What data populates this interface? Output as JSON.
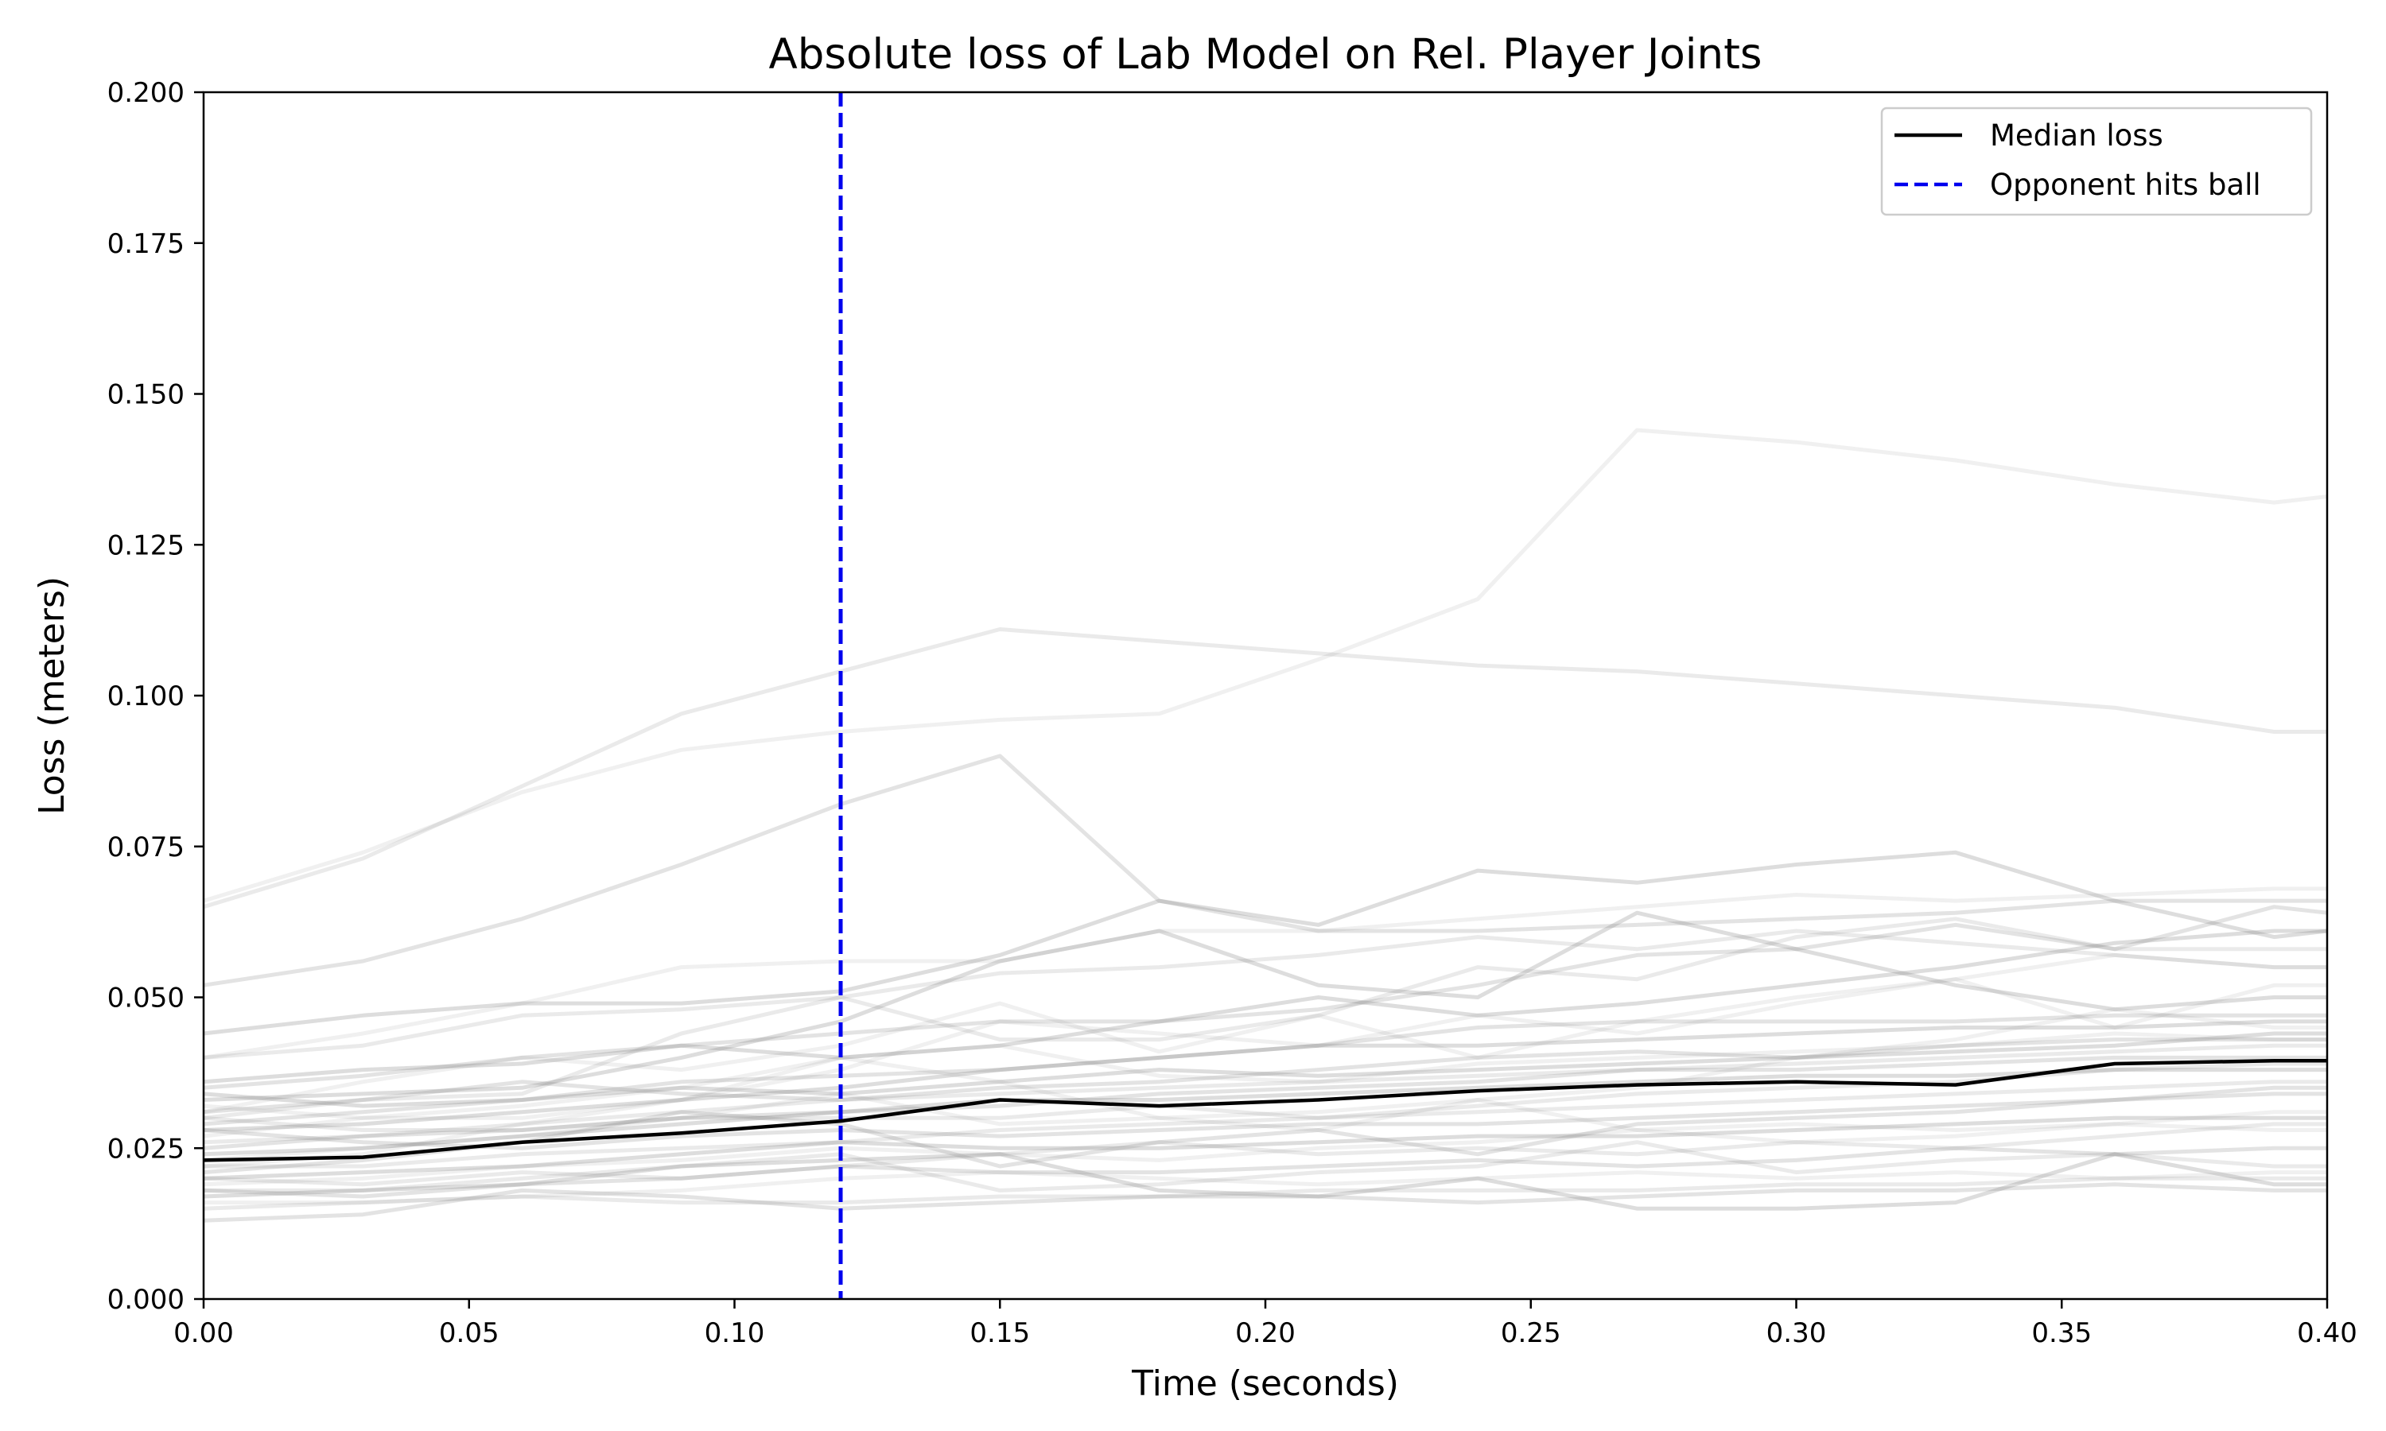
{
  "chart_data": {
    "type": "line",
    "title": "Absolute loss of Lab Model on Rel. Player Joints",
    "xlabel": "Time (seconds)",
    "ylabel": "Loss (meters)",
    "xlim": [
      0,
      0.4
    ],
    "ylim": [
      0,
      0.2
    ],
    "xticks": [
      0,
      0.05,
      0.1,
      0.15,
      0.2,
      0.25,
      0.3,
      0.35,
      0.4
    ],
    "xtick_labels": [
      "0.00",
      "0.05",
      "0.10",
      "0.15",
      "0.20",
      "0.25",
      "0.30",
      "0.35",
      "0.40"
    ],
    "yticks": [
      0,
      0.025,
      0.05,
      0.075,
      0.1,
      0.125,
      0.15,
      0.175,
      0.2
    ],
    "ytick_labels": [
      "0.000",
      "0.025",
      "0.050",
      "0.075",
      "0.100",
      "0.125",
      "0.150",
      "0.175",
      "0.200"
    ],
    "grid": false,
    "legend_position": "top-right",
    "x": [
      0,
      0.03,
      0.06,
      0.09,
      0.12,
      0.15,
      0.18,
      0.21,
      0.24,
      0.27,
      0.3,
      0.33,
      0.36,
      0.39,
      0.4
    ],
    "median": {
      "name": "Median loss",
      "color": "#000000",
      "values": [
        0.023,
        0.0235,
        0.026,
        0.0275,
        0.0295,
        0.033,
        0.032,
        0.033,
        0.0345,
        0.0355,
        0.036,
        0.0355,
        0.039,
        0.0395,
        0.0395
      ]
    },
    "event_line": {
      "name": "Opponent hits ball",
      "x": 0.12,
      "color": "#0000ee",
      "style": "dashed"
    },
    "individual_series": {
      "color": "#808080",
      "values": [
        [
          0.066,
          0.074,
          0.084,
          0.091,
          0.094,
          0.096,
          0.097,
          0.106,
          0.116,
          0.144,
          0.142,
          0.139,
          0.135,
          0.132,
          0.133
        ],
        [
          0.065,
          0.073,
          0.085,
          0.097,
          0.104,
          0.111,
          0.109,
          0.107,
          0.105,
          0.104,
          0.102,
          0.1,
          0.098,
          0.094,
          0.094
        ],
        [
          0.052,
          0.056,
          0.063,
          0.072,
          0.082,
          0.09,
          0.066,
          0.061,
          0.061,
          0.062,
          0.063,
          0.064,
          0.066,
          0.066,
          0.066
        ],
        [
          0.044,
          0.047,
          0.049,
          0.049,
          0.051,
          0.057,
          0.066,
          0.062,
          0.071,
          0.069,
          0.072,
          0.074,
          0.066,
          0.06,
          0.061
        ],
        [
          0.04,
          0.044,
          0.049,
          0.055,
          0.056,
          0.056,
          0.061,
          0.061,
          0.063,
          0.065,
          0.067,
          0.066,
          0.067,
          0.068,
          0.068
        ],
        [
          0.04,
          0.042,
          0.047,
          0.048,
          0.05,
          0.054,
          0.055,
          0.057,
          0.06,
          0.058,
          0.061,
          0.059,
          0.057,
          0.055,
          0.055
        ],
        [
          0.035,
          0.037,
          0.04,
          0.042,
          0.044,
          0.046,
          0.046,
          0.048,
          0.052,
          0.057,
          0.058,
          0.062,
          0.058,
          0.065,
          0.064
        ],
        [
          0.033,
          0.034,
          0.035,
          0.04,
          0.046,
          0.056,
          0.061,
          0.052,
          0.05,
          0.064,
          0.058,
          0.052,
          0.048,
          0.05,
          0.05
        ],
        [
          0.031,
          0.036,
          0.04,
          0.038,
          0.042,
          0.049,
          0.041,
          0.047,
          0.04,
          0.046,
          0.05,
          0.053,
          0.045,
          0.052,
          0.052
        ],
        [
          0.03,
          0.033,
          0.034,
          0.044,
          0.05,
          0.043,
          0.043,
          0.047,
          0.055,
          0.053,
          0.06,
          0.063,
          0.058,
          0.058,
          0.058
        ],
        [
          0.029,
          0.031,
          0.033,
          0.036,
          0.037,
          0.038,
          0.04,
          0.042,
          0.045,
          0.046,
          0.046,
          0.046,
          0.047,
          0.047,
          0.047
        ],
        [
          0.028,
          0.029,
          0.031,
          0.033,
          0.035,
          0.038,
          0.04,
          0.042,
          0.042,
          0.043,
          0.044,
          0.045,
          0.045,
          0.046,
          0.046
        ],
        [
          0.027,
          0.03,
          0.032,
          0.035,
          0.04,
          0.042,
          0.037,
          0.036,
          0.039,
          0.04,
          0.041,
          0.042,
          0.044,
          0.043,
          0.043
        ],
        [
          0.026,
          0.027,
          0.029,
          0.031,
          0.033,
          0.034,
          0.035,
          0.036,
          0.037,
          0.038,
          0.039,
          0.04,
          0.041,
          0.042,
          0.042
        ],
        [
          0.025,
          0.027,
          0.028,
          0.03,
          0.031,
          0.032,
          0.034,
          0.035,
          0.036,
          0.038,
          0.038,
          0.039,
          0.04,
          0.04,
          0.04
        ],
        [
          0.024,
          0.025,
          0.027,
          0.029,
          0.031,
          0.033,
          0.033,
          0.034,
          0.035,
          0.036,
          0.037,
          0.037,
          0.038,
          0.038,
          0.038
        ],
        [
          0.023,
          0.025,
          0.027,
          0.03,
          0.034,
          0.029,
          0.03,
          0.031,
          0.033,
          0.035,
          0.04,
          0.043,
          0.048,
          0.045,
          0.045
        ],
        [
          0.022,
          0.022,
          0.024,
          0.025,
          0.026,
          0.028,
          0.029,
          0.03,
          0.031,
          0.032,
          0.033,
          0.034,
          0.035,
          0.036,
          0.036
        ],
        [
          0.021,
          0.023,
          0.026,
          0.031,
          0.029,
          0.022,
          0.026,
          0.028,
          0.024,
          0.029,
          0.03,
          0.031,
          0.033,
          0.035,
          0.035
        ],
        [
          0.02,
          0.021,
          0.022,
          0.024,
          0.026,
          0.025,
          0.025,
          0.026,
          0.027,
          0.027,
          0.028,
          0.029,
          0.03,
          0.03,
          0.03
        ],
        [
          0.019,
          0.02,
          0.022,
          0.023,
          0.025,
          0.024,
          0.023,
          0.025,
          0.026,
          0.028,
          0.029,
          0.028,
          0.029,
          0.028,
          0.028
        ],
        [
          0.018,
          0.018,
          0.02,
          0.022,
          0.024,
          0.018,
          0.019,
          0.021,
          0.022,
          0.026,
          0.021,
          0.023,
          0.024,
          0.022,
          0.022
        ],
        [
          0.018,
          0.017,
          0.019,
          0.02,
          0.022,
          0.021,
          0.021,
          0.022,
          0.023,
          0.022,
          0.023,
          0.025,
          0.024,
          0.025,
          0.025
        ],
        [
          0.017,
          0.018,
          0.019,
          0.022,
          0.023,
          0.024,
          0.018,
          0.017,
          0.02,
          0.015,
          0.015,
          0.016,
          0.024,
          0.019,
          0.019
        ],
        [
          0.016,
          0.016,
          0.017,
          0.018,
          0.02,
          0.021,
          0.02,
          0.019,
          0.02,
          0.021,
          0.02,
          0.021,
          0.02,
          0.021,
          0.021
        ],
        [
          0.015,
          0.016,
          0.017,
          0.016,
          0.016,
          0.017,
          0.017,
          0.018,
          0.018,
          0.018,
          0.019,
          0.019,
          0.02,
          0.02,
          0.02
        ],
        [
          0.013,
          0.014,
          0.018,
          0.017,
          0.015,
          0.016,
          0.017,
          0.017,
          0.016,
          0.017,
          0.018,
          0.018,
          0.019,
          0.018,
          0.018
        ],
        [
          0.034,
          0.032,
          0.033,
          0.035,
          0.034,
          0.036,
          0.038,
          0.037,
          0.038,
          0.039,
          0.04,
          0.041,
          0.042,
          0.044,
          0.044
        ],
        [
          0.032,
          0.03,
          0.03,
          0.033,
          0.038,
          0.046,
          0.044,
          0.042,
          0.047,
          0.044,
          0.049,
          0.053,
          0.057,
          0.055,
          0.055
        ],
        [
          0.03,
          0.028,
          0.028,
          0.03,
          0.03,
          0.03,
          0.032,
          0.03,
          0.032,
          0.034,
          0.035,
          0.036,
          0.038,
          0.039,
          0.039
        ],
        [
          0.028,
          0.026,
          0.025,
          0.027,
          0.028,
          0.027,
          0.028,
          0.029,
          0.029,
          0.03,
          0.031,
          0.032,
          0.033,
          0.034,
          0.034
        ],
        [
          0.036,
          0.038,
          0.039,
          0.042,
          0.04,
          0.042,
          0.046,
          0.05,
          0.047,
          0.049,
          0.052,
          0.055,
          0.059,
          0.061,
          0.061
        ],
        [
          0.022,
          0.024,
          0.029,
          0.033,
          0.04,
          0.036,
          0.03,
          0.028,
          0.033,
          0.028,
          0.026,
          0.027,
          0.029,
          0.031,
          0.031
        ],
        [
          0.02,
          0.019,
          0.021,
          0.02,
          0.022,
          0.024,
          0.026,
          0.024,
          0.025,
          0.024,
          0.026,
          0.025,
          0.027,
          0.029,
          0.029
        ],
        [
          0.031,
          0.033,
          0.036,
          0.034,
          0.033,
          0.035,
          0.036,
          0.038,
          0.04,
          0.041,
          0.04,
          0.042,
          0.043,
          0.043,
          0.043
        ]
      ]
    }
  }
}
